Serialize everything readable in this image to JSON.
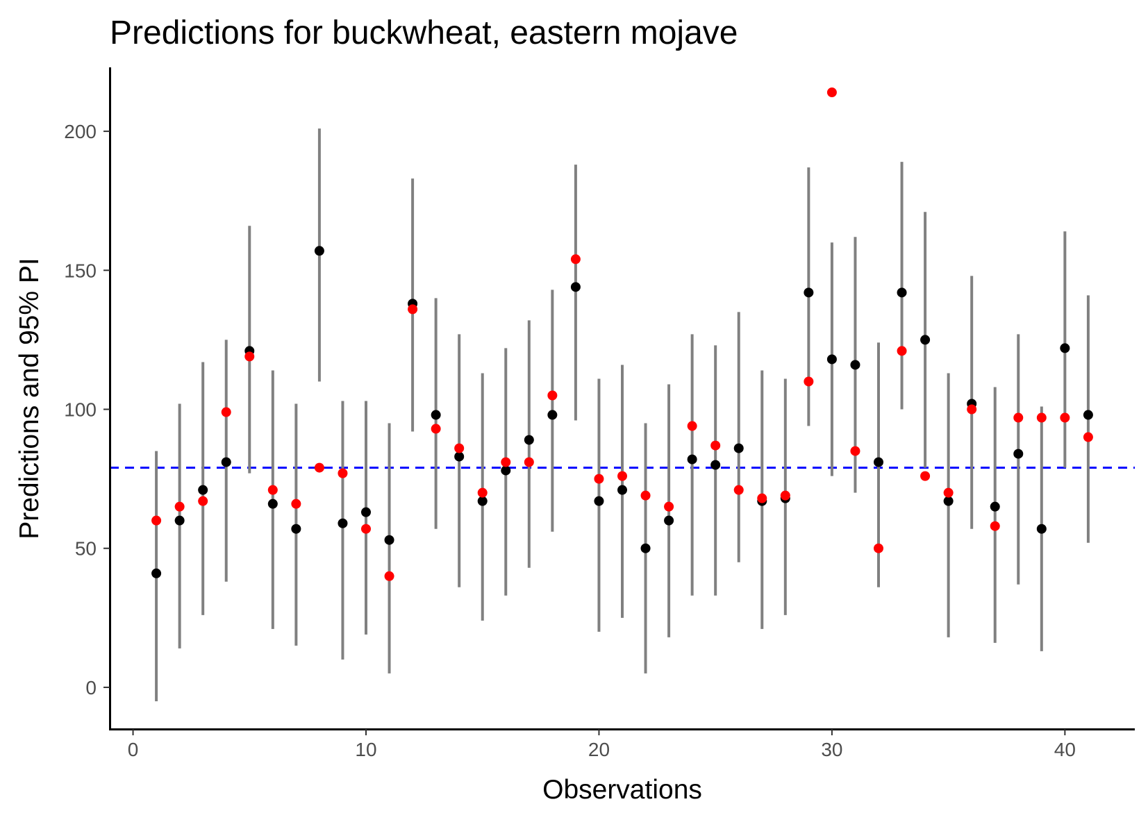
{
  "chart_data": {
    "type": "scatter",
    "title": "Predictions for buckwheat, eastern mojave",
    "xlabel": "Observations",
    "ylabel": "Predictions and 95% PI",
    "xlim": [
      -1,
      43
    ],
    "ylim": [
      -15,
      223
    ],
    "x_ticks": [
      0,
      10,
      20,
      30,
      40
    ],
    "y_ticks": [
      0,
      50,
      100,
      150,
      200
    ],
    "grid": false,
    "legend": "none",
    "reference_line": {
      "y": 79,
      "style": "dashed",
      "color": "#0000ff"
    },
    "colors": {
      "prediction": "#000000",
      "observed": "#ff0000",
      "interval": "#808080"
    },
    "x": [
      1,
      2,
      3,
      4,
      5,
      6,
      7,
      8,
      9,
      10,
      11,
      12,
      13,
      14,
      15,
      16,
      17,
      18,
      19,
      20,
      21,
      22,
      23,
      24,
      25,
      26,
      27,
      28,
      29,
      30,
      31,
      32,
      33,
      34,
      35,
      36,
      37,
      38,
      39,
      40,
      41
    ],
    "series": [
      {
        "role": "prediction",
        "values": [
          41,
          60,
          71,
          81,
          121,
          66,
          57,
          157,
          59,
          63,
          53,
          138,
          98,
          83,
          67,
          78,
          89,
          98,
          144,
          67,
          71,
          50,
          60,
          82,
          80,
          86,
          67,
          68,
          142,
          118,
          116,
          81,
          142,
          125,
          67,
          102,
          65,
          84,
          57,
          122,
          98
        ]
      },
      {
        "role": "interval_lower",
        "values": [
          -5,
          14,
          26,
          38,
          77,
          21,
          15,
          110,
          10,
          19,
          5,
          92,
          57,
          36,
          24,
          33,
          43,
          56,
          96,
          20,
          25,
          5,
          18,
          33,
          33,
          45,
          21,
          26,
          94,
          76,
          70,
          36,
          100,
          79,
          18,
          57,
          16,
          37,
          13,
          79,
          52
        ]
      },
      {
        "role": "interval_upper",
        "values": [
          85,
          102,
          117,
          125,
          166,
          114,
          102,
          201,
          103,
          103,
          95,
          183,
          140,
          127,
          113,
          122,
          132,
          143,
          188,
          111,
          116,
          95,
          109,
          127,
          123,
          135,
          114,
          111,
          187,
          160,
          162,
          124,
          189,
          171,
          113,
          148,
          108,
          127,
          101,
          164,
          141
        ]
      },
      {
        "role": "observed",
        "values": [
          60,
          65,
          67,
          99,
          119,
          71,
          66,
          79,
          77,
          57,
          40,
          136,
          93,
          86,
          70,
          81,
          81,
          105,
          154,
          75,
          76,
          69,
          65,
          94,
          87,
          71,
          68,
          69,
          110,
          214,
          85,
          50,
          121,
          76,
          70,
          100,
          58,
          97,
          97,
          97,
          90
        ]
      }
    ]
  }
}
